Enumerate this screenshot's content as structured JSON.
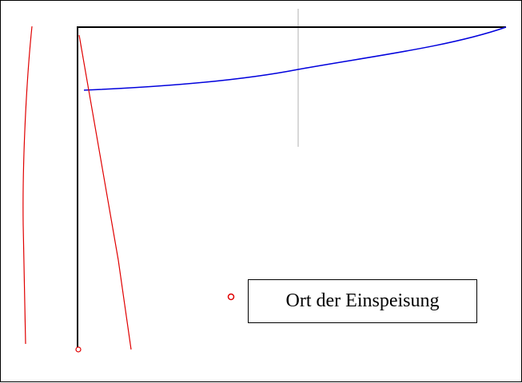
{
  "legend": {
    "label": "Ort der Einspeisung",
    "marker_color": "#e00000"
  },
  "colors": {
    "structure": "#000000",
    "current_distribution": "#e00000",
    "horizontal_distribution": "#0000dd",
    "center_line": "#b0b0b0",
    "background": "#ffffff"
  }
}
